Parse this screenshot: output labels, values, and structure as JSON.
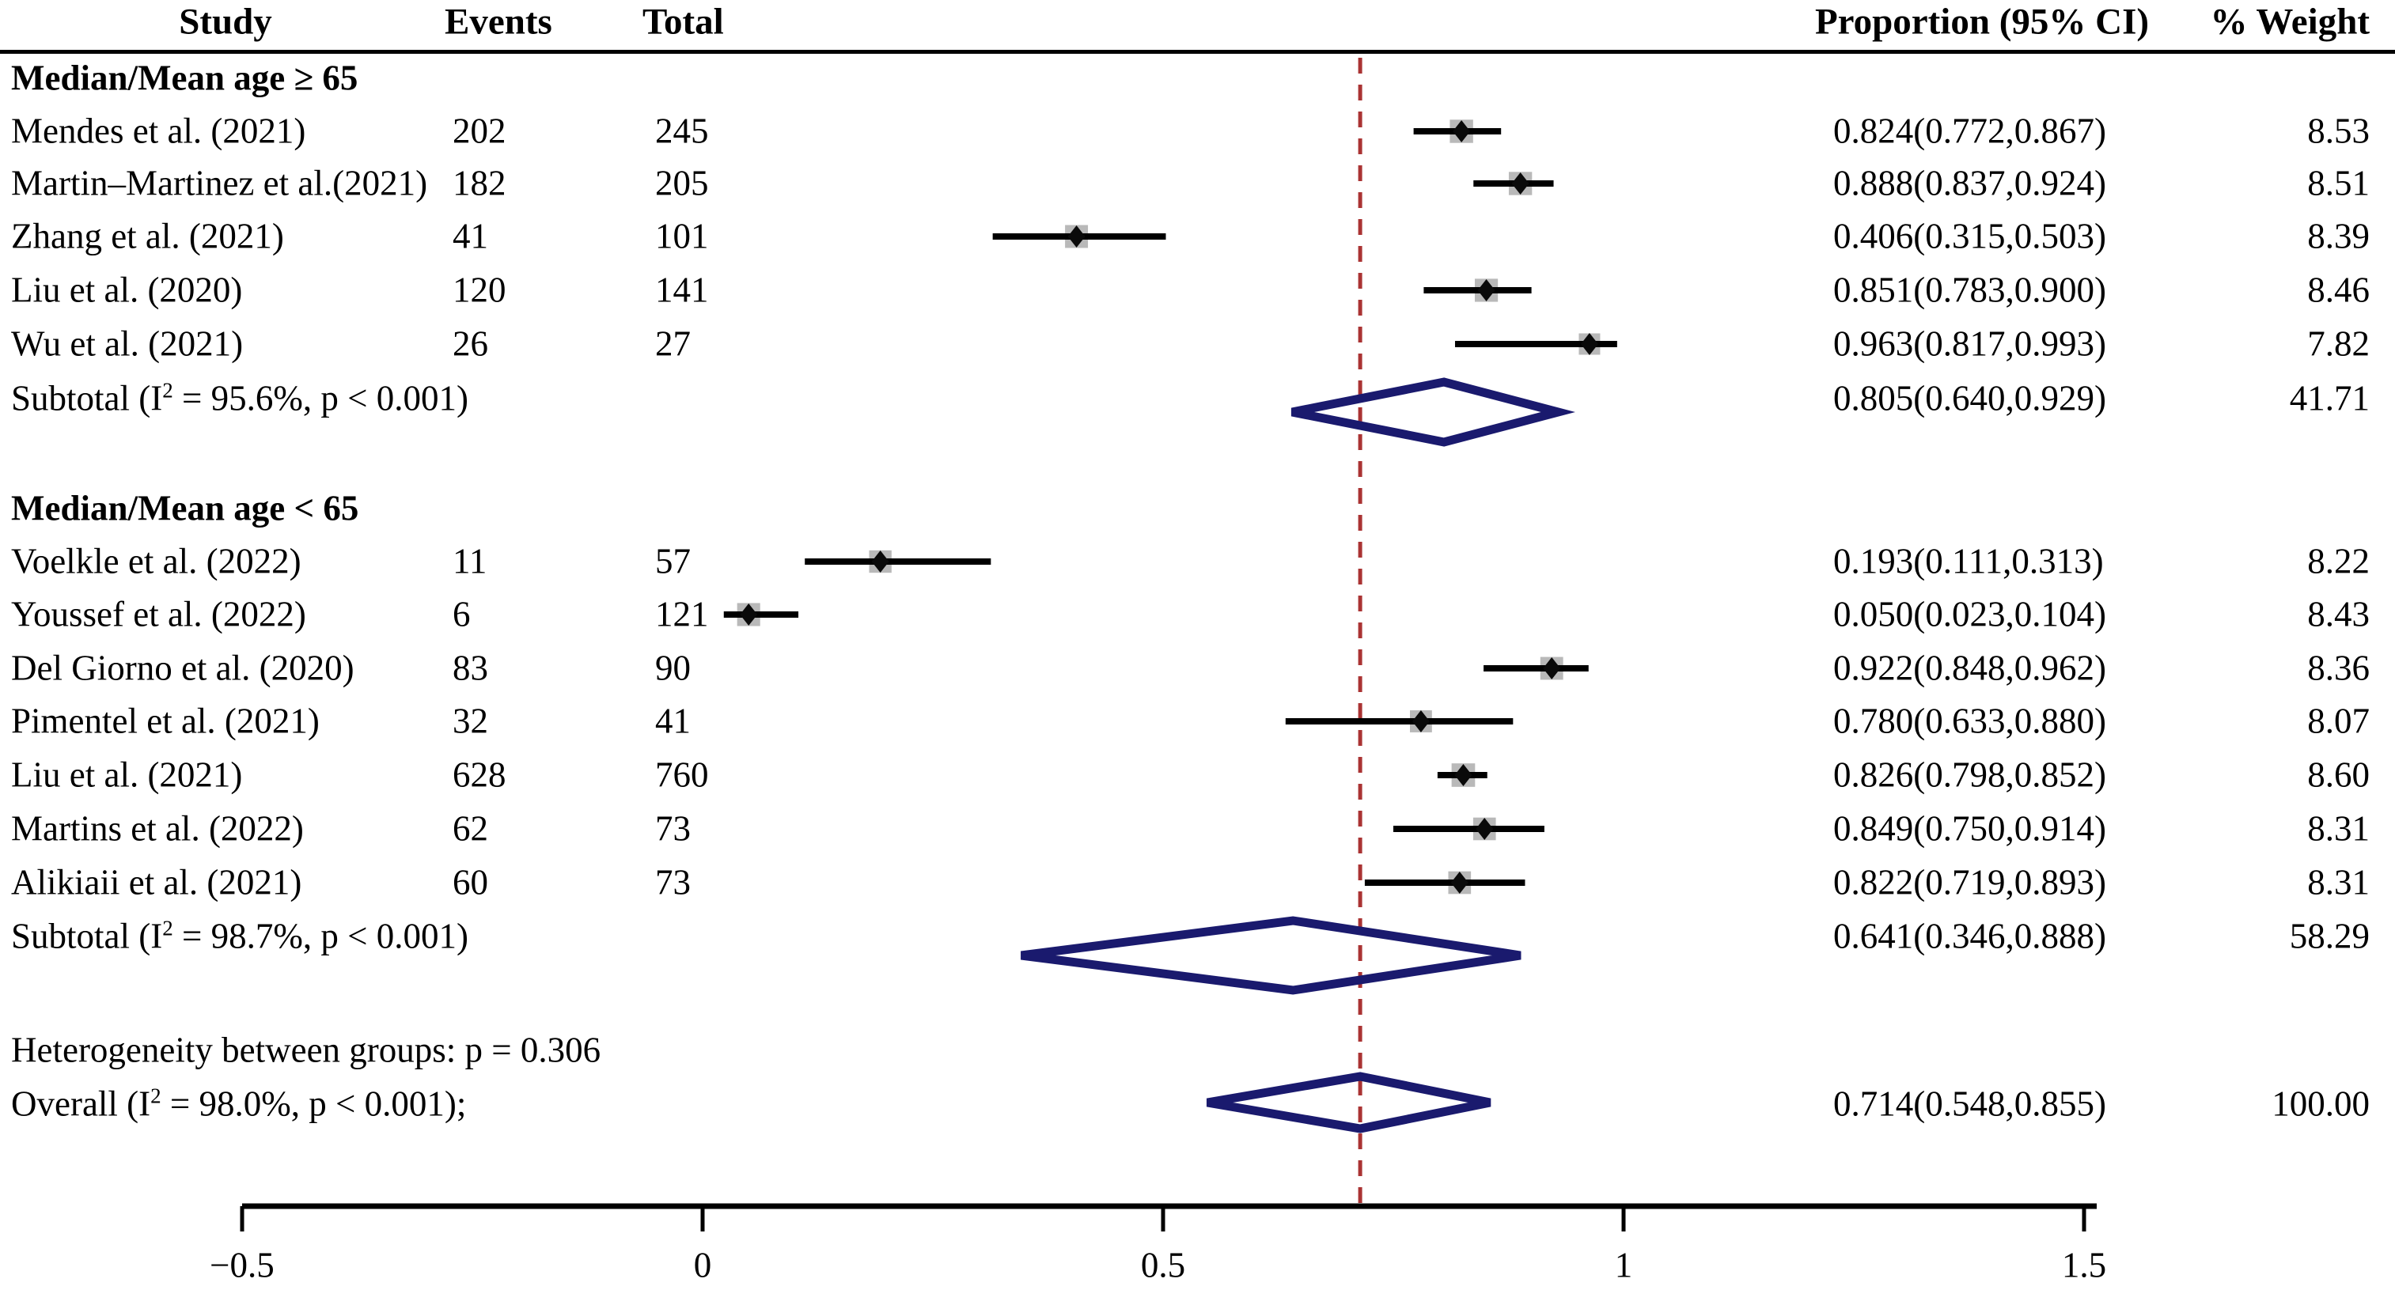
{
  "header": {
    "study": "Study",
    "events": "Events",
    "total": "Total",
    "proportion": "Proportion (95% CI)",
    "weight": "% Weight"
  },
  "chart_data": {
    "type": "forest",
    "x_axis": {
      "range": [
        -0.5,
        1.5
      ],
      "ticks": [
        -0.5,
        0,
        0.5,
        1,
        1.5
      ],
      "tick_labels": [
        "−0.5",
        "0",
        "0.5",
        "1",
        "1.5"
      ]
    },
    "reference_line": 0.714,
    "groups": [
      {
        "label": "Median/Mean age ≥ 65",
        "studies": [
          {
            "name": "Mendes et al. (2021)",
            "events": "202",
            "total": "245",
            "est": 0.824,
            "lo": 0.772,
            "hi": 0.867,
            "proportion": "0.824(0.772,0.867)",
            "weight": "8.53"
          },
          {
            "name": "Martin–Martinez et al.(2021)",
            "events": "182",
            "total": "205",
            "est": 0.888,
            "lo": 0.837,
            "hi": 0.924,
            "proportion": "0.888(0.837,0.924)",
            "weight": "8.51"
          },
          {
            "name": "Zhang et al. (2021)",
            "events": "41",
            "total": "101",
            "est": 0.406,
            "lo": 0.315,
            "hi": 0.503,
            "proportion": "0.406(0.315,0.503)",
            "weight": "8.39"
          },
          {
            "name": "Liu et al. (2020)",
            "events": "120",
            "total": "141",
            "est": 0.851,
            "lo": 0.783,
            "hi": 0.9,
            "proportion": "0.851(0.783,0.900)",
            "weight": "8.46"
          },
          {
            "name": "Wu et al. (2021)",
            "events": "26",
            "total": "27",
            "est": 0.963,
            "lo": 0.817,
            "hi": 0.993,
            "proportion": "0.963(0.817,0.993)",
            "weight": "7.82"
          }
        ],
        "subtotal": {
          "prefix": "Subtotal (I",
          "sup": "2",
          "rest": " = 95.6%, p < 0.001)",
          "est": 0.805,
          "lo": 0.64,
          "hi": 0.929,
          "proportion": "0.805(0.640,0.929)",
          "weight": "41.71"
        }
      },
      {
        "label": "Median/Mean age < 65",
        "studies": [
          {
            "name": "Voelkle et al. (2022)",
            "events": "11",
            "total": "57",
            "est": 0.193,
            "lo": 0.111,
            "hi": 0.313,
            "proportion": "0.193(0.111,0.313)",
            "weight": "8.22"
          },
          {
            "name": "Youssef et al. (2022)",
            "events": "6",
            "total": "121",
            "est": 0.05,
            "lo": 0.023,
            "hi": 0.104,
            "proportion": "0.050(0.023,0.104)",
            "weight": "8.43"
          },
          {
            "name": "Del Giorno et al. (2020)",
            "events": "83",
            "total": "90",
            "est": 0.922,
            "lo": 0.848,
            "hi": 0.962,
            "proportion": "0.922(0.848,0.962)",
            "weight": "8.36"
          },
          {
            "name": "Pimentel et al. (2021)",
            "events": "32",
            "total": "41",
            "est": 0.78,
            "lo": 0.633,
            "hi": 0.88,
            "proportion": "0.780(0.633,0.880)",
            "weight": "8.07"
          },
          {
            "name": "Liu et al. (2021)",
            "events": "628",
            "total": "760",
            "est": 0.826,
            "lo": 0.798,
            "hi": 0.852,
            "proportion": "0.826(0.798,0.852)",
            "weight": "8.60"
          },
          {
            "name": "Martins et al. (2022)",
            "events": "62",
            "total": "73",
            "est": 0.849,
            "lo": 0.75,
            "hi": 0.914,
            "proportion": "0.849(0.750,0.914)",
            "weight": "8.31"
          },
          {
            "name": "Alikiaii et al. (2021)",
            "events": "60",
            "total": "73",
            "est": 0.822,
            "lo": 0.719,
            "hi": 0.893,
            "proportion": "0.822(0.719,0.893)",
            "weight": "8.31"
          }
        ],
        "subtotal": {
          "prefix": "Subtotal (I",
          "sup": "2",
          "rest": " = 98.7%, p < 0.001)",
          "est": 0.641,
          "lo": 0.346,
          "hi": 0.888,
          "proportion": "0.641(0.346,0.888)",
          "weight": "58.29"
        }
      }
    ],
    "heterogeneity": "Heterogeneity between groups: p = 0.306",
    "overall": {
      "prefix": "Overall (I",
      "sup": "2",
      "rest": " = 98.0%, p < 0.001);",
      "est": 0.714,
      "lo": 0.548,
      "hi": 0.855,
      "proportion": "0.714(0.548,0.855)",
      "weight": "100.00"
    }
  },
  "colors": {
    "text": "#000000",
    "ci_line": "#000000",
    "marker_diamond": "#0a0a0a",
    "marker_box": "#b9b9b9",
    "pooled_diamond": "#1a1a6e",
    "reference_line": "#aa3333",
    "axis": "#000000"
  }
}
